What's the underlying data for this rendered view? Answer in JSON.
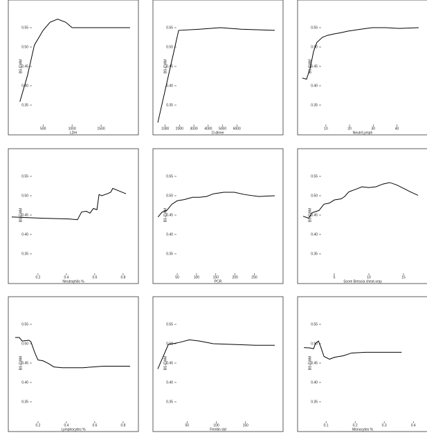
{
  "chart_data": [
    {
      "type": "line",
      "x_label": "LDH",
      "y_label": "BS-EWM",
      "x": [
        100,
        230,
        350,
        500,
        620,
        750,
        890,
        1000,
        2000
      ],
      "values": [
        0.359,
        0.426,
        0.505,
        0.543,
        0.564,
        0.572,
        0.564,
        0.55,
        0.55
      ],
      "xlim": [
        -40,
        2000
      ],
      "ylim": [
        0.3,
        0.6
      ],
      "xticks": [
        500,
        1000,
        1500
      ],
      "yticks": [
        0.35,
        {
          "value": 0.4,
          "label": "0.40"
        },
        0.45,
        {
          "value": 0.5,
          "label": "0.50"
        },
        0.55
      ],
      "color": "#000000"
    },
    {
      "type": "line",
      "x_label": "D-dimer",
      "y_label": "BS-EWM",
      "x": [
        490,
        1940,
        3400,
        4850,
        6300,
        8640
      ],
      "values": [
        0.305,
        0.543,
        0.546,
        0.55,
        0.546,
        0.543
      ],
      "xlim": [
        390,
        8640
      ],
      "ylim": [
        0.3,
        0.6
      ],
      "xticks": [
        1000,
        2000,
        3000,
        4000,
        5000,
        6000
      ],
      "yticks": [
        0.35,
        {
          "value": 0.4,
          "label": "0.40"
        },
        0.45,
        {
          "value": 0.5,
          "label": "0.50"
        },
        0.55
      ],
      "color": "#000000"
    },
    {
      "type": "line",
      "x_label": "Neutr/Lymph",
      "y_label": "BS-EWM",
      "x": [
        0,
        1.8,
        3.3,
        4.8,
        6.2,
        8.5,
        10.6,
        13.5,
        16.4,
        19.3,
        23.7,
        29.5,
        35.3,
        41,
        49.2
      ],
      "values": [
        0.42,
        0.417,
        0.444,
        0.489,
        0.512,
        0.525,
        0.53,
        0.534,
        0.537,
        0.541,
        0.545,
        0.55,
        0.55,
        0.548,
        0.55
      ],
      "xlim": [
        -0.5,
        49.5
      ],
      "ylim": [
        0.3,
        0.6
      ],
      "xticks": [
        10,
        20,
        30,
        40
      ],
      "yticks": [
        0.35,
        {
          "value": 0.4,
          "label": "0.40"
        },
        0.45,
        {
          "value": 0.5,
          "label": "0.50"
        },
        0.55
      ],
      "color": "#000000"
    },
    {
      "type": "line",
      "x_label": "Neutrophils %",
      "y_label": "BS-EWM",
      "x": [
        0.015,
        0.224,
        0.42,
        0.478,
        0.507,
        0.54,
        0.566,
        0.59,
        0.615,
        0.63,
        0.649,
        0.688,
        0.712,
        0.727,
        0.76,
        0.82
      ],
      "values": [
        0.445,
        0.442,
        0.44,
        0.438,
        0.458,
        0.46,
        0.455,
        0.467,
        0.464,
        0.503,
        0.5,
        0.505,
        0.509,
        0.519,
        0.514,
        0.505
      ],
      "xlim": [
        0.015,
        0.849
      ],
      "ylim": [
        0.3,
        0.6
      ],
      "xticks": [
        0.2,
        0.4,
        0.6,
        0.8
      ],
      "yticks": [
        0.35,
        {
          "value": 0.4,
          "label": "0.40"
        },
        0.45,
        {
          "value": 0.5,
          "label": "0.50"
        },
        0.55
      ],
      "color": "#000000"
    },
    {
      "type": "line",
      "x_label": "PCR",
      "y_label": "BS-EWM",
      "x": [
        0,
        11,
        23,
        36,
        50,
        68,
        90,
        108,
        126,
        144,
        171,
        198,
        225,
        261,
        303
      ],
      "values": [
        0.445,
        0.458,
        0.462,
        0.478,
        0.487,
        0.49,
        0.496,
        0.496,
        0.498,
        0.505,
        0.509,
        0.509,
        0.503,
        0.498,
        0.5
      ],
      "xlim": [
        -4,
        303
      ],
      "ylim": [
        0.3,
        0.6
      ],
      "xticks": [
        50,
        100,
        150,
        200,
        250
      ],
      "yticks": [
        0.35,
        {
          "value": 0.4,
          "label": "0.40"
        },
        0.45,
        {
          "value": 0.5,
          "label": "0.50"
        },
        0.55
      ],
      "color": "#000000"
    },
    {
      "type": "line",
      "x_label": "Score Brescia chest-xray",
      "y_label": "BS-EWM",
      "x": [
        0.5,
        1.3,
        1.8,
        2.8,
        3.5,
        4.3,
        5,
        6,
        6.5,
        7.1,
        7.7,
        8.3,
        9,
        10,
        11,
        12,
        13,
        14,
        15,
        16,
        17.1
      ],
      "values": [
        0.447,
        0.442,
        0.456,
        0.462,
        0.478,
        0.481,
        0.489,
        0.492,
        0.498,
        0.51,
        0.514,
        0.518,
        0.523,
        0.521,
        0.523,
        0.53,
        0.534,
        0.528,
        0.519,
        0.51,
        0.501
      ],
      "xlim": [
        0.2,
        17.3
      ],
      "ylim": [
        0.3,
        0.6
      ],
      "xticks": [
        5,
        10,
        15
      ],
      "yticks": [
        0.35,
        {
          "value": 0.4,
          "label": "0.40"
        },
        0.45,
        {
          "value": 0.5,
          "label": "0.50"
        },
        0.55
      ],
      "color": "#000000"
    },
    {
      "type": "line",
      "x_label": "Lymphocytes %",
      "y_label": "BS-EWM",
      "x": [
        0.039,
        0.068,
        0.088,
        0.136,
        0.15,
        0.176,
        0.2,
        0.234,
        0.273,
        0.312,
        0.37,
        0.517,
        0.66,
        0.849
      ],
      "values": [
        0.516,
        0.516,
        0.507,
        0.509,
        0.505,
        0.478,
        0.458,
        0.456,
        0.449,
        0.44,
        0.438,
        0.438,
        0.442,
        0.442
      ],
      "xlim": [
        0.015,
        0.849
      ],
      "ylim": [
        0.3,
        0.6
      ],
      "xticks": [
        0.2,
        0.4,
        0.6,
        0.8
      ],
      "yticks": [
        0.35,
        {
          "value": 0.4,
          "label": "0.40"
        },
        0.45,
        {
          "value": 0.5,
          "label": "0.50"
        },
        0.55
      ],
      "color": "#000000"
    },
    {
      "type": "line",
      "x_label": "Ferritin std",
      "y_label": "BS-EWM",
      "x": [
        0,
        18,
        36,
        54,
        71,
        95,
        131,
        167,
        200
      ],
      "values": [
        0.435,
        0.498,
        0.503,
        0.51,
        0.507,
        0.5,
        0.498,
        0.496,
        0.496
      ],
      "xlim": [
        -2.4,
        200
      ],
      "ylim": [
        0.3,
        0.6
      ],
      "xticks": [
        50,
        100,
        150
      ],
      "yticks": [
        0.35,
        {
          "value": 0.4,
          "label": "0.40"
        },
        0.45,
        {
          "value": 0.5,
          "label": "0.50"
        },
        0.55
      ],
      "color": "#000000"
    },
    {
      "type": "line",
      "x_label": "Monocytes %",
      "y_label": "BS-EWM",
      "x": [
        0.024,
        0.045,
        0.057,
        0.064,
        0.074,
        0.083,
        0.093,
        0.112,
        0.129,
        0.16,
        0.188,
        0.236,
        0.36
      ],
      "values": [
        0.49,
        0.489,
        0.487,
        0.501,
        0.507,
        0.489,
        0.467,
        0.46,
        0.465,
        0.469,
        0.476,
        0.478,
        0.478
      ],
      "xlim": [
        0.014,
        0.421
      ],
      "ylim": [
        0.3,
        0.6
      ],
      "xticks": [
        0.1,
        0.2,
        0.3,
        0.4
      ],
      "yticks": [
        0.35,
        {
          "value": 0.4,
          "label": "0.40"
        },
        0.45,
        {
          "value": 0.5,
          "label": "0.50"
        },
        0.55
      ],
      "color": "#000000"
    }
  ]
}
